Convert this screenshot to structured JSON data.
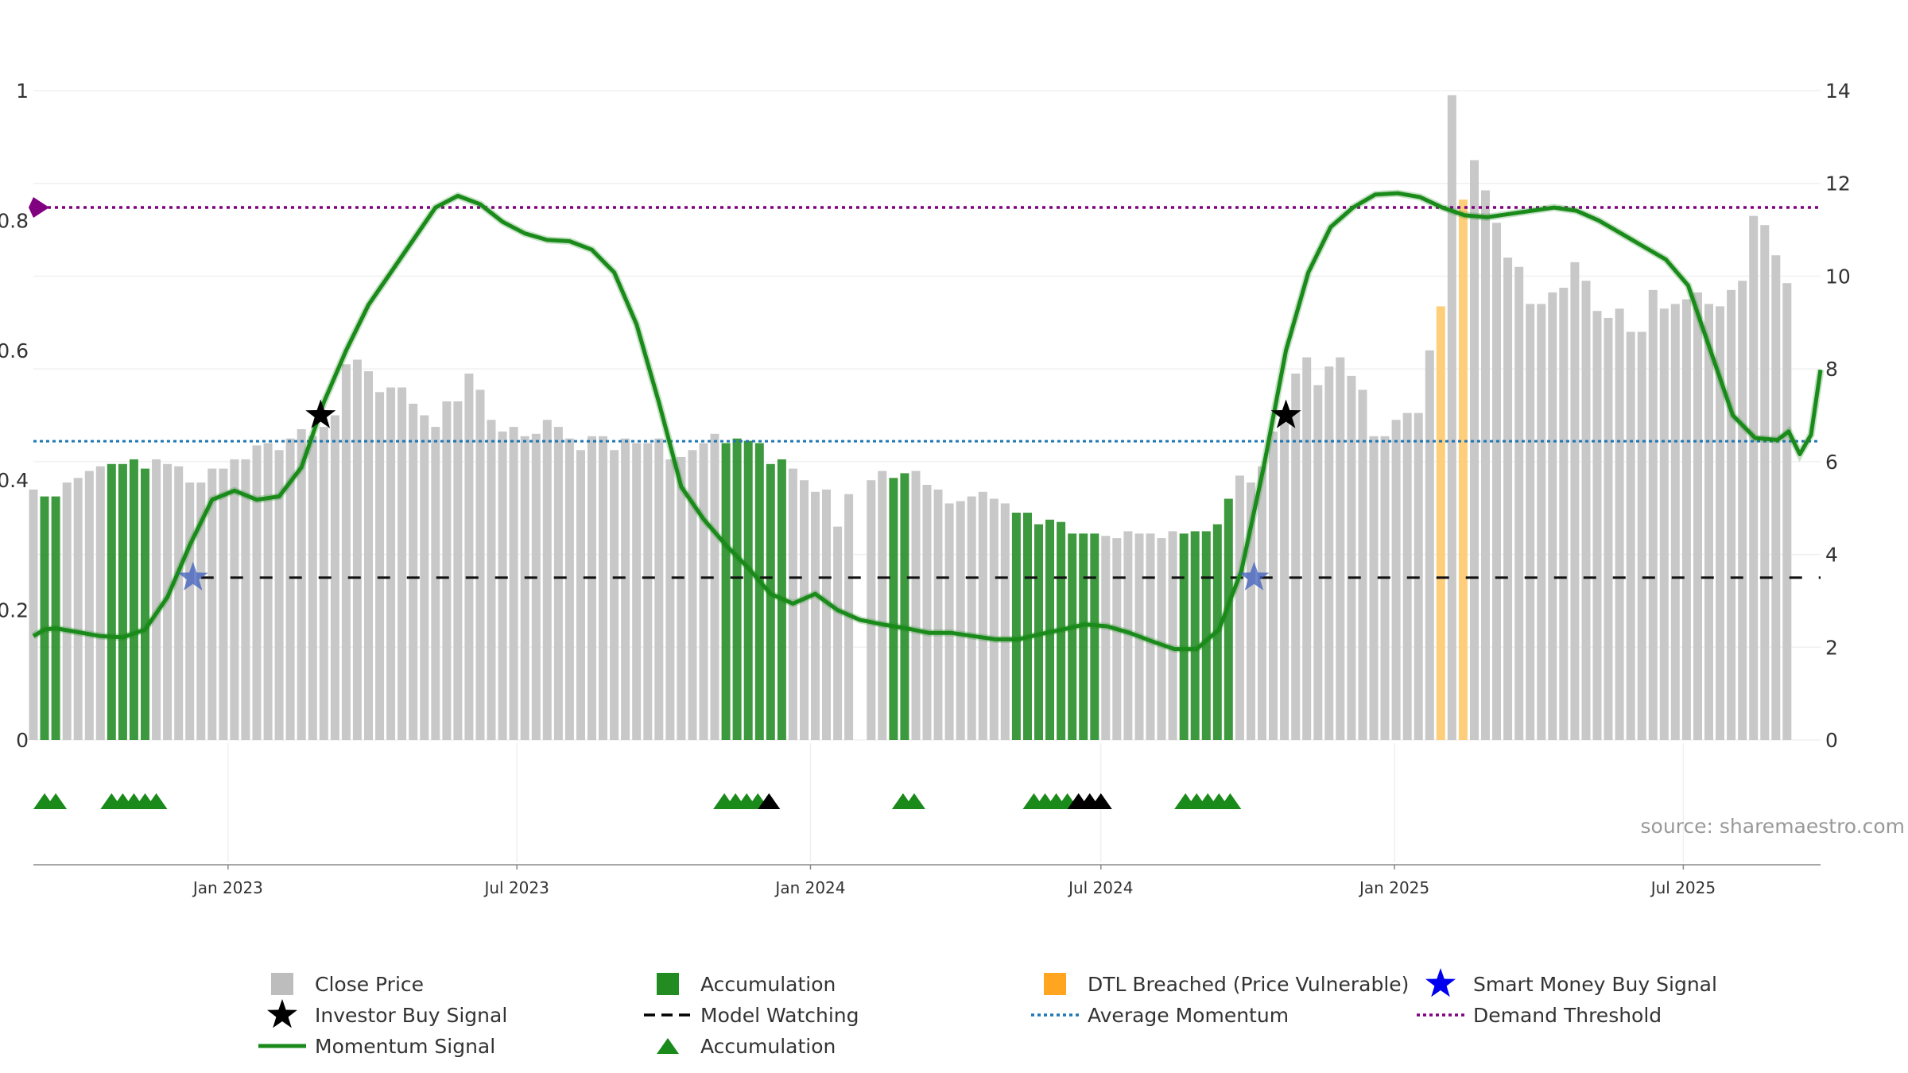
{
  "chart_data": {
    "type": "bar",
    "source_text": "source: sharemaestro.com",
    "x_range": [
      "2022-09-01",
      "2025-09-25"
    ],
    "x_ticks": [
      {
        "date": "2023-01-01",
        "label": "Jan 2023"
      },
      {
        "date": "2023-07-01",
        "label": "Jul 2023"
      },
      {
        "date": "2024-01-01",
        "label": "Jan 2024"
      },
      {
        "date": "2024-07-01",
        "label": "Jul 2024"
      },
      {
        "date": "2025-01-01",
        "label": "Jan 2025"
      },
      {
        "date": "2025-07-01",
        "label": "Jul 2025"
      }
    ],
    "y_left": {
      "min": 0,
      "max": 1,
      "ticks": [
        "0",
        "0.2",
        "0.4",
        "0.6",
        "0.8",
        "1"
      ]
    },
    "y_right": {
      "min": 0,
      "max": 14,
      "ticks": [
        "0",
        "2",
        "4",
        "6",
        "8",
        "10",
        "12",
        "14"
      ]
    },
    "close_price": {
      "start": "2022-09-01",
      "interval_days": 7,
      "unit": "price (right axis)",
      "values": [
        5.4,
        5.25,
        5.25,
        5.55,
        5.65,
        5.8,
        5.9,
        5.95,
        5.95,
        6.05,
        5.85,
        6.05,
        5.95,
        5.9,
        5.55,
        5.55,
        5.85,
        5.85,
        6.05,
        6.05,
        6.35,
        6.4,
        6.25,
        6.5,
        6.7,
        6.55,
        6.75,
        7.0,
        8.1,
        8.2,
        7.95,
        7.5,
        7.6,
        7.6,
        7.25,
        7.0,
        6.75,
        7.3,
        7.3,
        7.9,
        7.55,
        6.9,
        6.65,
        6.75,
        6.55,
        6.6,
        6.9,
        6.75,
        6.5,
        6.25,
        6.55,
        6.55,
        6.25,
        6.5,
        6.4,
        6.4,
        6.5,
        6.05,
        6.1,
        6.25,
        6.4,
        6.6,
        6.4,
        6.5,
        6.45,
        6.4,
        5.95,
        6.05,
        5.85,
        5.6,
        5.35,
        5.4,
        4.6,
        5.3,
        0,
        5.6,
        5.8,
        5.65,
        5.75,
        5.8,
        5.5,
        5.4,
        5.1,
        5.15,
        5.25,
        5.35,
        5.2,
        5.1,
        4.9,
        4.9,
        4.65,
        4.75,
        4.7,
        4.45,
        4.45,
        4.45,
        4.4,
        4.35,
        4.5,
        4.45,
        4.45,
        4.35,
        4.5,
        4.45,
        4.5,
        4.5,
        4.65,
        5.2,
        5.7,
        5.55,
        5.9,
        6.65,
        7.0,
        7.9,
        8.25,
        7.65,
        8.05,
        8.25,
        7.85,
        7.55,
        6.55,
        6.55,
        6.9,
        7.05,
        7.05,
        8.4,
        9.35,
        13.9,
        11.65,
        12.5,
        11.85,
        11.15,
        10.4,
        10.2,
        9.4,
        9.4,
        9.65,
        9.75,
        10.3,
        9.9,
        9.25,
        9.1,
        9.3,
        8.8,
        8.8,
        9.7,
        9.3,
        9.4,
        9.5,
        9.65,
        9.4,
        9.35,
        9.7,
        9.9,
        11.3,
        11.1,
        10.45,
        9.85
      ]
    },
    "accumulation_weeks": [
      1,
      2,
      7,
      8,
      9,
      10,
      62,
      63,
      64,
      65,
      66,
      67,
      77,
      78,
      88,
      89,
      90,
      91,
      92,
      93,
      94,
      95,
      103,
      104,
      105,
      106,
      107
    ],
    "dtl_breached_weeks": [
      126,
      128
    ],
    "momentum_signal": {
      "axis": "left",
      "points": [
        [
          "2022-09-01",
          0.16
        ],
        [
          "2022-09-08",
          0.17
        ],
        [
          "2022-09-15",
          0.172
        ],
        [
          "2022-09-29",
          0.166
        ],
        [
          "2022-10-13",
          0.16
        ],
        [
          "2022-10-27",
          0.158
        ],
        [
          "2022-11-10",
          0.17
        ],
        [
          "2022-11-24",
          0.22
        ],
        [
          "2022-12-08",
          0.3
        ],
        [
          "2022-12-22",
          0.37
        ],
        [
          "2023-01-05",
          0.384
        ],
        [
          "2023-01-19",
          0.37
        ],
        [
          "2023-02-02",
          0.375
        ],
        [
          "2023-02-16",
          0.42
        ],
        [
          "2023-03-02",
          0.52
        ],
        [
          "2023-03-16",
          0.6
        ],
        [
          "2023-03-30",
          0.67
        ],
        [
          "2023-04-13",
          0.72
        ],
        [
          "2023-04-27",
          0.77
        ],
        [
          "2023-05-11",
          0.82
        ],
        [
          "2023-05-25",
          0.838
        ],
        [
          "2023-06-08",
          0.825
        ],
        [
          "2023-06-22",
          0.798
        ],
        [
          "2023-07-06",
          0.78
        ],
        [
          "2023-07-20",
          0.77
        ],
        [
          "2023-08-03",
          0.768
        ],
        [
          "2023-08-17",
          0.755
        ],
        [
          "2023-08-31",
          0.72
        ],
        [
          "2023-09-14",
          0.64
        ],
        [
          "2023-09-28",
          0.52
        ],
        [
          "2023-10-12",
          0.39
        ],
        [
          "2023-10-26",
          0.34
        ],
        [
          "2023-11-09",
          0.3
        ],
        [
          "2023-11-23",
          0.265
        ],
        [
          "2023-12-07",
          0.225
        ],
        [
          "2023-12-21",
          0.21
        ],
        [
          "2024-01-04",
          0.225
        ],
        [
          "2024-01-18",
          0.2
        ],
        [
          "2024-02-01",
          0.185
        ],
        [
          "2024-02-15",
          0.178
        ],
        [
          "2024-03-01",
          0.172
        ],
        [
          "2024-03-15",
          0.165
        ],
        [
          "2024-03-29",
          0.165
        ],
        [
          "2024-04-12",
          0.16
        ],
        [
          "2024-04-26",
          0.155
        ],
        [
          "2024-05-10",
          0.155
        ],
        [
          "2024-05-24",
          0.163
        ],
        [
          "2024-06-07",
          0.17
        ],
        [
          "2024-06-21",
          0.178
        ],
        [
          "2024-07-05",
          0.175
        ],
        [
          "2024-07-19",
          0.165
        ],
        [
          "2024-08-02",
          0.152
        ],
        [
          "2024-08-16",
          0.14
        ],
        [
          "2024-08-30",
          0.14
        ],
        [
          "2024-09-13",
          0.17
        ],
        [
          "2024-09-27",
          0.26
        ],
        [
          "2024-10-11",
          0.42
        ],
        [
          "2024-10-25",
          0.6
        ],
        [
          "2024-11-08",
          0.72
        ],
        [
          "2024-11-22",
          0.79
        ],
        [
          "2024-12-06",
          0.82
        ],
        [
          "2024-12-20",
          0.84
        ],
        [
          "2025-01-03",
          0.842
        ],
        [
          "2025-01-17",
          0.836
        ],
        [
          "2025-01-31",
          0.82
        ],
        [
          "2025-02-14",
          0.808
        ],
        [
          "2025-02-28",
          0.805
        ],
        [
          "2025-03-14",
          0.81
        ],
        [
          "2025-03-28",
          0.815
        ],
        [
          "2025-04-11",
          0.82
        ],
        [
          "2025-04-25",
          0.815
        ],
        [
          "2025-05-09",
          0.8
        ],
        [
          "2025-05-23",
          0.78
        ],
        [
          "2025-06-06",
          0.76
        ],
        [
          "2025-06-20",
          0.74
        ],
        [
          "2025-07-04",
          0.7
        ],
        [
          "2025-07-18",
          0.6
        ],
        [
          "2025-08-01",
          0.5
        ],
        [
          "2025-08-15",
          0.465
        ],
        [
          "2025-08-29",
          0.462
        ],
        [
          "2025-09-05",
          0.475
        ],
        [
          "2025-09-12",
          0.44
        ],
        [
          "2025-09-19",
          0.47
        ],
        [
          "2025-09-25",
          0.57
        ]
      ]
    },
    "average_momentum": {
      "axis": "left",
      "value": 0.46
    },
    "demand_threshold": {
      "axis": "left",
      "value": 0.82
    },
    "model_watching": {
      "axis": "left",
      "value": 0.25,
      "from": "2022-12-15"
    },
    "investor_buy_signals": [
      {
        "date": "2023-02-28",
        "value": 0.5
      },
      {
        "date": "2024-10-25",
        "value": 0.5
      }
    ],
    "smart_money_buy_signals": [
      {
        "date": "2022-12-10",
        "value": 0.25
      },
      {
        "date": "2024-10-05",
        "value": 0.25
      }
    ],
    "accumulation_markers": {
      "green": [
        "2022-09-08",
        "2022-09-15",
        "2022-10-20",
        "2022-10-27",
        "2022-11-03",
        "2022-11-10",
        "2022-11-17",
        "2023-11-08",
        "2023-11-15",
        "2023-11-22",
        "2023-11-29",
        "2024-02-28",
        "2024-03-06",
        "2024-05-20",
        "2024-05-27",
        "2024-06-03",
        "2024-06-10",
        "2024-08-23",
        "2024-08-30",
        "2024-09-06",
        "2024-09-13",
        "2024-09-20"
      ],
      "black": [
        "2023-12-06",
        "2024-06-17",
        "2024-06-24",
        "2024-07-01"
      ]
    },
    "legend": [
      {
        "label": "Close Price",
        "kind": "square",
        "color": "#bdbdbd"
      },
      {
        "label": "Accumulation",
        "kind": "square",
        "color": "#228b22"
      },
      {
        "label": "DTL Breached (Price Vulnerable)",
        "kind": "square",
        "color": "#ffa520"
      },
      {
        "label": "Smart Money Buy Signal",
        "kind": "star",
        "color": "#0000ee"
      },
      {
        "label": "Investor Buy Signal",
        "kind": "star",
        "color": "#000000"
      },
      {
        "label": "Model Watching",
        "kind": "dash",
        "color": "#000000"
      },
      {
        "label": "Average Momentum",
        "kind": "dot",
        "color": "#1f77b4"
      },
      {
        "label": "Demand Threshold",
        "kind": "dot",
        "color": "#800080"
      },
      {
        "label": "Momentum Signal",
        "kind": "line",
        "color": "#1a8a1a"
      },
      {
        "label": "Accumulation",
        "kind": "triangle",
        "color": "#1a8a1a"
      }
    ]
  }
}
